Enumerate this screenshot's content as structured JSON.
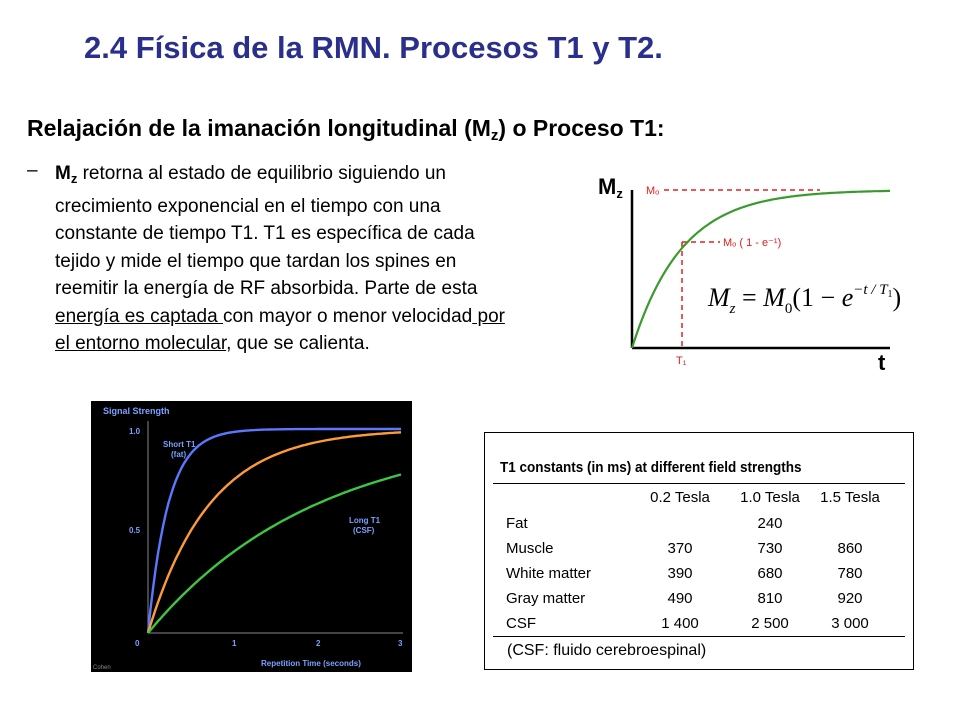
{
  "title": "2.4 Física de la RMN. Procesos T1 y T2.",
  "heading": {
    "pre": "Relajación de la imanación longitudinal (M",
    "sub": "z",
    "post": ") o Proceso T1:"
  },
  "bullet": {
    "dash": "–",
    "mz_main": "M",
    "mz_sub": "z",
    "line1": " retorna al estado de equilibrio siguiendo un",
    "line2": "crecimiento exponencial en el tiempo con una",
    "line3": "constante de tiempo T1. T1 es específica de cada",
    "line4": "tejido y mide el tiempo que tardan los spines en",
    "line5": "reemitir la energía de RF absorbida. Parte de esta",
    "line6_u1": "energía es captada ",
    "line6_mid": "con mayor o menor velocidad",
    "line6_u2": " por",
    "line7_u": "el entorno molecular",
    "line7_rest": ", que se calienta."
  },
  "curve_diagram": {
    "y_label_main": "M",
    "y_label_sub": "z",
    "x_label": "t",
    "m0_label": "Mₒ",
    "m0_partial_label": "Mₒ ( 1 - e⁻¹)",
    "t1_label": "T₁",
    "formula": "M_z = M_0(1 − e^(−t/T_1))",
    "curve_color": "#3a9a2e",
    "marker_color": "#e02020"
  },
  "signal_chart": {
    "title": "Signal Strength",
    "xlabel": "Repetition Time (seconds)",
    "x_ticks": [
      "0",
      "1",
      "2",
      "3"
    ],
    "y_ticks": [
      "1.0",
      "0.5"
    ],
    "label_short": [
      "Short T1",
      "(fat)"
    ],
    "label_long": [
      "Long T1",
      "(CSF)"
    ],
    "credit": "Cohen",
    "series": [
      {
        "color": "#5a78ff",
        "T1": 0.24
      },
      {
        "color": "#ff9a3a",
        "T1": 0.73
      },
      {
        "color": "#3ec640",
        "T1": 2.0
      }
    ],
    "x_range": [
      0,
      3
    ],
    "y_range": [
      0,
      1
    ]
  },
  "t1_table": {
    "title": "T1 constants (in ms) at different field strengths",
    "columns": [
      "0.2 Tesla",
      "1.0 Tesla",
      "1.5 Tesla"
    ],
    "rows": [
      {
        "tissue": "Fat",
        "values": [
          "",
          "240",
          ""
        ]
      },
      {
        "tissue": "Muscle",
        "values": [
          "370",
          "730",
          "860"
        ]
      },
      {
        "tissue": "White matter",
        "values": [
          "390",
          "680",
          "780"
        ]
      },
      {
        "tissue": "Gray matter",
        "values": [
          "490",
          "810",
          "920"
        ]
      },
      {
        "tissue": "CSF",
        "values": [
          "1 400",
          "2 500",
          "3 000"
        ]
      }
    ],
    "note": "(CSF: fluido cerebroespinal)"
  }
}
